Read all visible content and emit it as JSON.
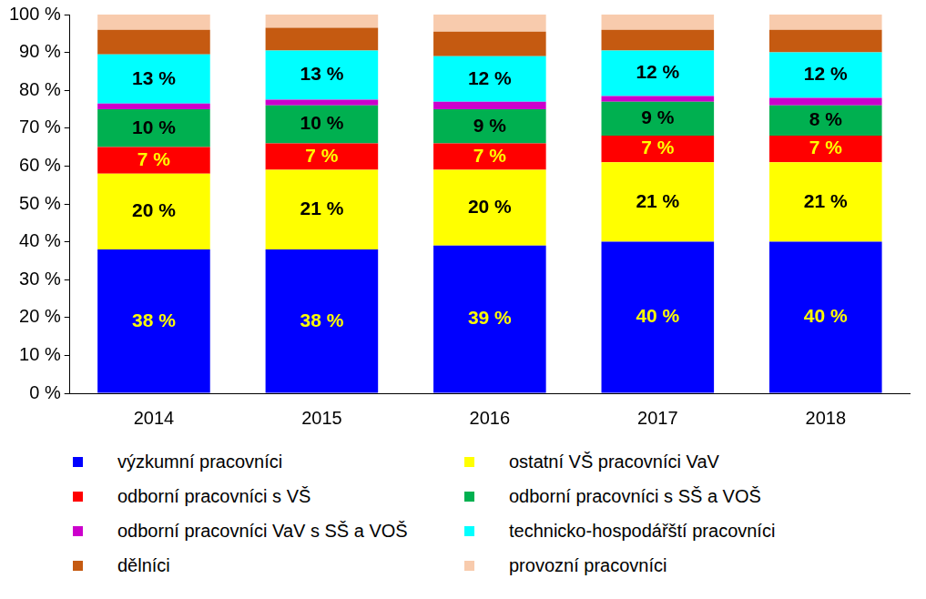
{
  "chart_data": {
    "type": "bar",
    "stacked": true,
    "grid": false,
    "legend": "bottom",
    "categories": [
      "2014",
      "2015",
      "2016",
      "2017",
      "2018"
    ],
    "ylim": [
      0,
      100
    ],
    "yticks": [
      {
        "value": 0,
        "label": "0 %"
      },
      {
        "value": 10,
        "label": "10 %"
      },
      {
        "value": 20,
        "label": "20 %"
      },
      {
        "value": 30,
        "label": "30 %"
      },
      {
        "value": 40,
        "label": "40 %"
      },
      {
        "value": 50,
        "label": "50 %"
      },
      {
        "value": 60,
        "label": "60 %"
      },
      {
        "value": 70,
        "label": "70 %"
      },
      {
        "value": 80,
        "label": "80 %"
      },
      {
        "value": 90,
        "label": "90 %"
      },
      {
        "value": 100,
        "label": "100 %"
      }
    ],
    "series": [
      {
        "name": "výzkumní pracovníci",
        "color": "#0000ff",
        "data_labels": true,
        "values": [
          38,
          38,
          39,
          40,
          40
        ],
        "value_labels": [
          "38 %",
          "38 %",
          "39 %",
          "40 %",
          "40 %"
        ]
      },
      {
        "name": "ostatní VŠ pracovníci VaV",
        "color": "#ffff00",
        "data_labels": true,
        "values": [
          20,
          21,
          20,
          21,
          21
        ],
        "value_labels": [
          "20 %",
          "21 %",
          "20 %",
          "21 %",
          "21 %"
        ]
      },
      {
        "name": "odborní pracovníci s VŠ",
        "color": "#ff0000",
        "data_labels": true,
        "values": [
          7,
          7,
          7,
          7,
          7
        ],
        "value_labels": [
          "7 %",
          "7 %",
          "7 %",
          "7 %",
          "7 %"
        ]
      },
      {
        "name": "odborní pracovníci s SŠ a VOŠ",
        "color": "#00b050",
        "data_labels": true,
        "values": [
          10,
          10,
          9,
          9,
          8
        ],
        "value_labels": [
          "10 %",
          "10 %",
          "9 %",
          "9 %",
          "8 %"
        ]
      },
      {
        "name": "odborní pracovníci VaV s SŠ a VOŠ",
        "color": "#cc00cc",
        "data_labels": false,
        "values": [
          1.5,
          1.5,
          2,
          1.5,
          2
        ]
      },
      {
        "name": "technicko-hospodářští pracovníci",
        "color": "#00ffff",
        "data_labels": true,
        "values": [
          13,
          13,
          12,
          12,
          12
        ],
        "value_labels": [
          "13 %",
          "13 %",
          "12 %",
          "12 %",
          "12 %"
        ]
      },
      {
        "name": "dělníci",
        "color": "#c55a11",
        "data_labels": false,
        "values": [
          6.5,
          6,
          6.5,
          5.5,
          6
        ]
      },
      {
        "name": "provozní pracovníci",
        "color": "#f8cbad",
        "data_labels": false,
        "values": [
          4,
          3.5,
          4.5,
          4,
          4
        ]
      }
    ]
  }
}
